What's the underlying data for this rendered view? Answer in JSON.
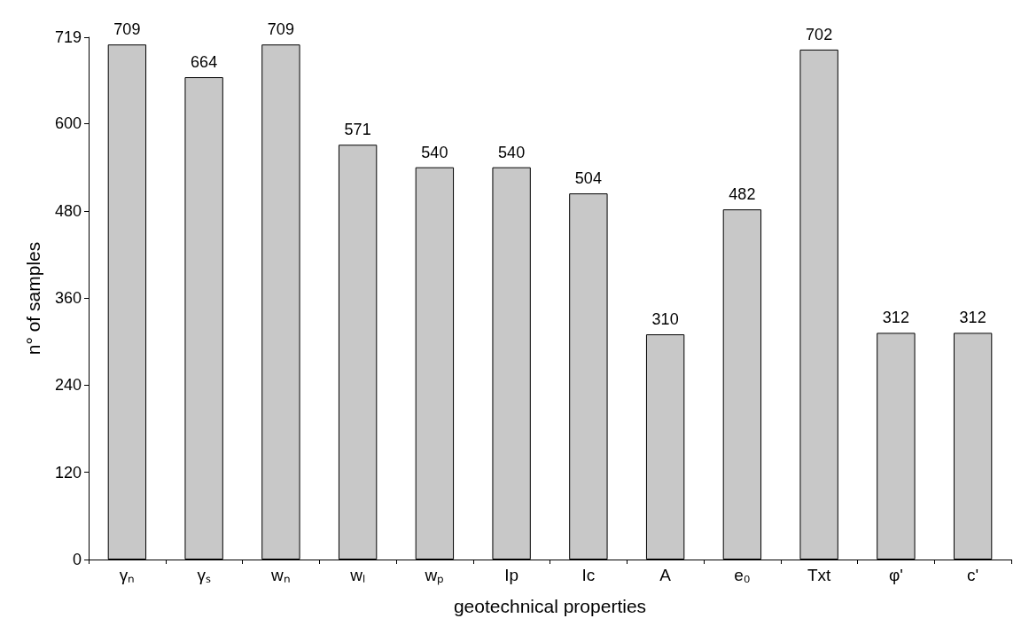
{
  "chart_data": {
    "type": "bar",
    "xlabel": "geotechnical properties",
    "ylabel": "n° of samples",
    "categories": [
      "γₙ",
      "γₛ",
      "wₙ",
      "wₗ",
      "wₚ",
      "Ip",
      "Ic",
      "A",
      "e₀",
      "Txt",
      "φ'",
      "c'"
    ],
    "values": [
      709,
      664,
      709,
      571,
      540,
      540,
      504,
      310,
      482,
      702,
      312,
      312
    ],
    "color": "#c8c8c8",
    "ylim": [
      0,
      719
    ],
    "yticks": [
      0,
      120,
      240,
      360,
      480,
      600,
      719
    ],
    "data_labels": true,
    "grid": false
  }
}
